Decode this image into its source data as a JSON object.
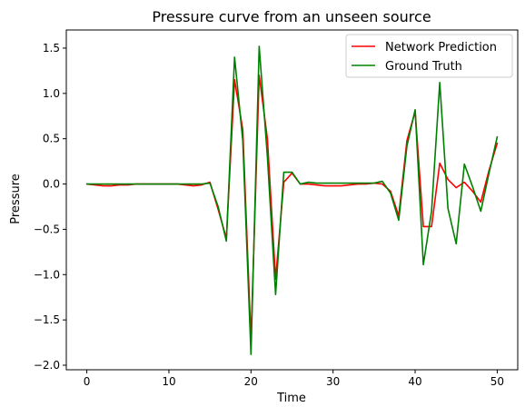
{
  "chart_data": {
    "type": "line",
    "title": "Pressure curve from an unseen source",
    "xlabel": "Time",
    "ylabel": "Pressure",
    "xlim": [
      -2.5,
      52.5
    ],
    "ylim": [
      -2.05,
      1.7
    ],
    "xticks": [
      0,
      10,
      20,
      30,
      40,
      50
    ],
    "yticks": [
      -2.0,
      -1.5,
      -1.0,
      -0.5,
      0.0,
      0.5,
      1.0,
      1.5
    ],
    "xtick_labels": [
      "0",
      "10",
      "20",
      "30",
      "40",
      "50"
    ],
    "ytick_labels": [
      "−2.0",
      "−1.5",
      "−1.0",
      "−0.5",
      "0.0",
      "0.5",
      "1.0",
      "1.5"
    ],
    "grid": false,
    "legend_position": "top-right",
    "x": [
      0,
      1,
      2,
      3,
      4,
      5,
      6,
      7,
      8,
      9,
      10,
      11,
      12,
      13,
      14,
      15,
      16,
      17,
      18,
      19,
      20,
      21,
      22,
      23,
      24,
      25,
      26,
      27,
      28,
      29,
      30,
      31,
      32,
      33,
      34,
      35,
      36,
      37,
      38,
      39,
      40,
      41,
      42,
      43,
      44,
      45,
      46,
      47,
      48,
      49,
      50
    ],
    "series": [
      {
        "name": "Network Prediction",
        "color": "#ff0000",
        "values": [
          0.0,
          -0.01,
          -0.02,
          -0.02,
          -0.01,
          -0.01,
          0.0,
          0.0,
          0.0,
          0.0,
          0.0,
          0.0,
          -0.01,
          -0.02,
          -0.01,
          0.02,
          -0.28,
          -0.6,
          1.15,
          0.6,
          -1.72,
          1.2,
          0.5,
          -1.05,
          0.02,
          0.12,
          0.0,
          0.0,
          -0.01,
          -0.02,
          -0.02,
          -0.02,
          -0.01,
          0.0,
          0.0,
          0.01,
          0.0,
          -0.08,
          -0.35,
          0.48,
          0.8,
          -0.47,
          -0.47,
          0.23,
          0.05,
          -0.04,
          0.02,
          -0.08,
          -0.2,
          0.15,
          0.45
        ]
      },
      {
        "name": "Ground Truth",
        "color": "#008000",
        "values": [
          0.0,
          0.0,
          0.0,
          0.0,
          0.0,
          0.0,
          0.0,
          0.0,
          0.0,
          0.0,
          0.0,
          0.0,
          0.0,
          0.0,
          0.0,
          0.01,
          -0.25,
          -0.63,
          1.4,
          0.48,
          -1.88,
          1.52,
          0.3,
          -1.22,
          0.13,
          0.13,
          0.0,
          0.02,
          0.01,
          0.01,
          0.01,
          0.01,
          0.01,
          0.01,
          0.01,
          0.01,
          0.03,
          -0.1,
          -0.4,
          0.42,
          0.82,
          -0.89,
          -0.3,
          1.12,
          -0.27,
          -0.66,
          0.22,
          -0.03,
          -0.3,
          0.12,
          0.52
        ]
      }
    ]
  }
}
